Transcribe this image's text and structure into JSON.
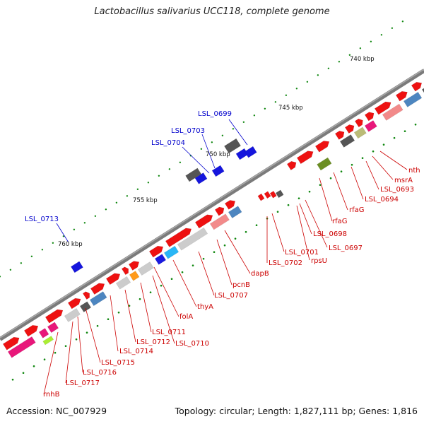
{
  "title": "Lactobacillus salivarius UCC118, complete genome",
  "accession_text": "Accession: NC_007929",
  "summary_text": "Topology: circular; Length: 1,827,111 bp; Genes: 1,816",
  "ticks": [
    "740 kbp",
    "745 kbp",
    "750 kbp",
    "755 kbp",
    "760 kbp"
  ],
  "red_labels": [
    "nth",
    "msrA",
    "LSL_0693",
    "LSL_0694",
    "rfaG",
    "rfaG",
    "LSL_0697",
    "LSL_0698",
    "rpsU",
    "LSL_0701",
    "LSL_0702",
    "dapB",
    "pcnB",
    "LSL_0707",
    "thyA",
    "folA",
    "LSL_0710",
    "LSL_0711",
    "LSL_0712",
    "LSL_0714",
    "LSL_0715",
    "LSL_0716",
    "LSL_0717",
    "rnhB"
  ],
  "blue_labels": [
    "LSL_0699",
    "LSL_0703",
    "LSL_0704",
    "LSL_0713"
  ],
  "colors": {
    "forward_cds": "#ee1111",
    "reverse_cds": "#1515dd",
    "backbone": "#808080",
    "gc_skew": "#118811",
    "red_label": "#cc0000",
    "blue_label": "#0000cc"
  }
}
